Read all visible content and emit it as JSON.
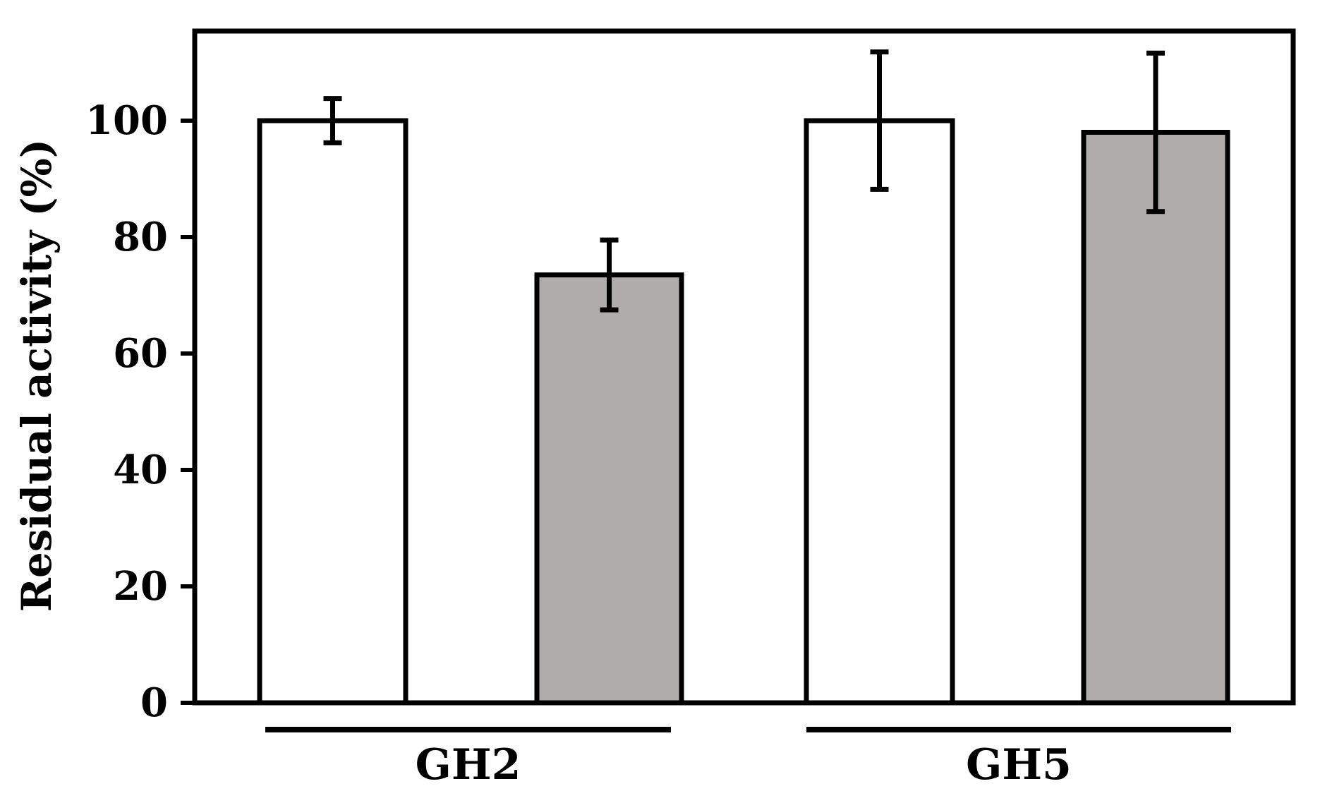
{
  "chart_data": {
    "type": "bar",
    "ylabel": "Residual activity (%)",
    "ylim": [
      0,
      112
    ],
    "yticks": [
      0,
      20,
      40,
      60,
      80,
      100
    ],
    "grid": false,
    "groups": [
      {
        "label": "GH2",
        "bars": [
          {
            "value": 100,
            "error": 3.8,
            "color": "#ffffff"
          },
          {
            "value": 73.5,
            "error": 6.0,
            "color": "#b0acab"
          }
        ]
      },
      {
        "label": "GH5",
        "bars": [
          {
            "value": 100,
            "error": 11.8,
            "color": "#ffffff"
          },
          {
            "value": 98,
            "error": 13.6,
            "color": "#b0acab"
          }
        ]
      }
    ]
  }
}
